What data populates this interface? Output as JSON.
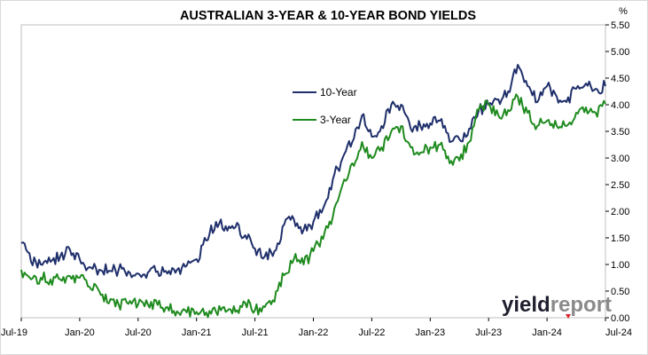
{
  "chart_data": {
    "type": "line",
    "title": "AUSTRALIAN 3-YEAR & 10-YEAR BOND YIELDS",
    "ylabel": "%",
    "xlabel": "",
    "ylim": [
      0,
      5.5
    ],
    "y_ticks": [
      "0.00",
      "0.50",
      "1.00",
      "1.50",
      "2.00",
      "2.50",
      "3.00",
      "3.50",
      "4.00",
      "4.50",
      "5.00",
      "5.50"
    ],
    "x_ticks": [
      "Jul-19",
      "Jan-20",
      "Jul-20",
      "Jan-21",
      "Jul-21",
      "Jan-22",
      "Jul-22",
      "Jan-23",
      "Jul-23",
      "Jan-24",
      "Jul-24"
    ],
    "x_range": [
      "Jul-19",
      "Jul-24"
    ],
    "grid": false,
    "legend_position": "center",
    "series": [
      {
        "name": "10-Year",
        "color": "#1f2f6b",
        "x": [
          "Jul-19",
          "Aug-19",
          "Sep-19",
          "Oct-19",
          "Nov-19",
          "Dec-19",
          "Jan-20",
          "Feb-20",
          "Mar-20",
          "Apr-20",
          "May-20",
          "Jun-20",
          "Jul-20",
          "Aug-20",
          "Sep-20",
          "Oct-20",
          "Nov-20",
          "Dec-20",
          "Jan-21",
          "Feb-21",
          "Mar-21",
          "Apr-21",
          "May-21",
          "Jun-21",
          "Jul-21",
          "Aug-21",
          "Sep-21",
          "Oct-21",
          "Nov-21",
          "Dec-21",
          "Jan-22",
          "Feb-22",
          "Mar-22",
          "Apr-22",
          "May-22",
          "Jun-22",
          "Jul-22",
          "Aug-22",
          "Sep-22",
          "Oct-22",
          "Nov-22",
          "Dec-22",
          "Jan-23",
          "Feb-23",
          "Mar-23",
          "Apr-23",
          "May-23",
          "Jun-23",
          "Jul-23",
          "Aug-23",
          "Sep-23",
          "Oct-23",
          "Nov-23",
          "Dec-23",
          "Jan-24",
          "Feb-24",
          "Mar-24",
          "Apr-24",
          "May-24",
          "Jun-24",
          "Jul-24"
        ],
        "values": [
          1.4,
          1.05,
          1.0,
          1.05,
          1.15,
          1.28,
          1.1,
          0.95,
          0.9,
          0.88,
          0.9,
          0.87,
          0.83,
          0.85,
          0.87,
          0.83,
          0.9,
          0.98,
          1.1,
          1.45,
          1.8,
          1.72,
          1.7,
          1.55,
          1.3,
          1.15,
          1.25,
          1.75,
          1.85,
          1.65,
          1.8,
          2.05,
          2.6,
          3.0,
          3.3,
          3.8,
          3.4,
          3.6,
          4.0,
          4.0,
          3.55,
          3.6,
          3.65,
          3.7,
          3.3,
          3.35,
          3.55,
          3.9,
          4.0,
          4.1,
          4.25,
          4.75,
          4.35,
          4.05,
          4.35,
          4.15,
          4.05,
          4.3,
          4.4,
          4.3,
          4.35
        ]
      },
      {
        "name": "3-Year",
        "color": "#1f8b1f",
        "x": [
          "Jul-19",
          "Aug-19",
          "Sep-19",
          "Oct-19",
          "Nov-19",
          "Dec-19",
          "Jan-20",
          "Feb-20",
          "Mar-20",
          "Apr-20",
          "May-20",
          "Jun-20",
          "Jul-20",
          "Aug-20",
          "Sep-20",
          "Oct-20",
          "Nov-20",
          "Dec-20",
          "Jan-21",
          "Feb-21",
          "Mar-21",
          "Apr-21",
          "May-21",
          "Jun-21",
          "Jul-21",
          "Aug-21",
          "Sep-21",
          "Oct-21",
          "Nov-21",
          "Dec-21",
          "Jan-22",
          "Feb-22",
          "Mar-22",
          "Apr-22",
          "May-22",
          "Jun-22",
          "Jul-22",
          "Aug-22",
          "Sep-22",
          "Oct-22",
          "Nov-22",
          "Dec-22",
          "Jan-23",
          "Feb-23",
          "Mar-23",
          "Apr-23",
          "May-23",
          "Jun-23",
          "Jul-23",
          "Aug-23",
          "Sep-23",
          "Oct-23",
          "Nov-23",
          "Dec-23",
          "Jan-24",
          "Feb-24",
          "Mar-24",
          "Apr-24",
          "May-24",
          "Jun-24",
          "Jul-24"
        ],
        "values": [
          0.9,
          0.72,
          0.75,
          0.72,
          0.72,
          0.78,
          0.75,
          0.58,
          0.5,
          0.27,
          0.25,
          0.26,
          0.25,
          0.25,
          0.24,
          0.2,
          0.12,
          0.1,
          0.11,
          0.1,
          0.11,
          0.11,
          0.11,
          0.28,
          0.14,
          0.2,
          0.3,
          0.8,
          1.1,
          1.0,
          1.25,
          1.48,
          1.9,
          2.5,
          2.9,
          3.3,
          3.0,
          3.2,
          3.5,
          3.6,
          3.2,
          3.1,
          3.2,
          3.25,
          2.9,
          2.95,
          3.3,
          3.9,
          4.0,
          3.8,
          3.9,
          4.15,
          3.85,
          3.6,
          3.7,
          3.6,
          3.6,
          3.85,
          3.95,
          3.85,
          4.02
        ]
      }
    ]
  },
  "legend": {
    "items": [
      {
        "label": "10-Year",
        "color": "#1f2f6b"
      },
      {
        "label": "3-Year",
        "color": "#1f8b1f"
      }
    ]
  },
  "brand": {
    "prefix": "yield",
    "suffix": "report",
    "prefix_color": "#1f1f2f",
    "suffix_color": "#8a8a8a",
    "accent_color": "#e0202a"
  },
  "colors": {
    "plot_border": "#bfbfbf",
    "axis": "#000000"
  }
}
